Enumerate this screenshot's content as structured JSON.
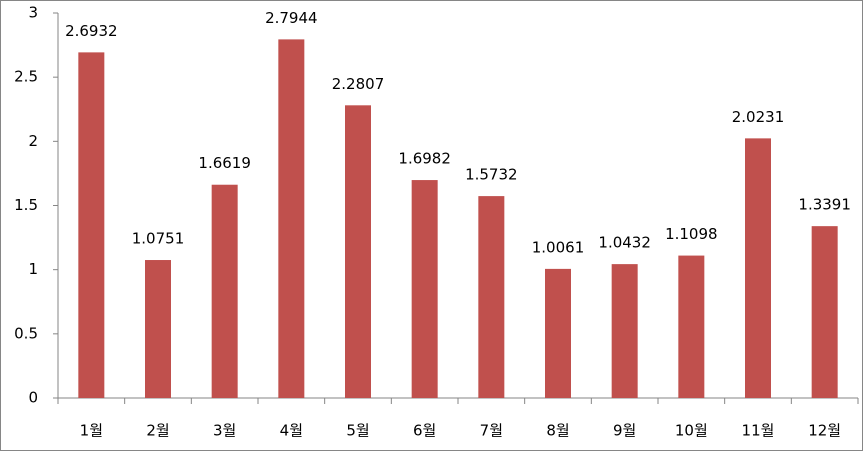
{
  "chart_data": {
    "type": "bar",
    "categories": [
      "1월",
      "2월",
      "3월",
      "4월",
      "5월",
      "6월",
      "7월",
      "8월",
      "9월",
      "10월",
      "11월",
      "12월"
    ],
    "values": [
      2.6932,
      1.0751,
      1.6619,
      2.7944,
      2.2807,
      1.6982,
      1.5732,
      1.0061,
      1.0432,
      1.1098,
      2.0231,
      1.3391
    ],
    "color": "#c0504d",
    "ylim": [
      0,
      3
    ],
    "yticks": [
      0,
      0.5,
      1,
      1.5,
      2,
      2.5,
      3
    ],
    "grid": false
  }
}
